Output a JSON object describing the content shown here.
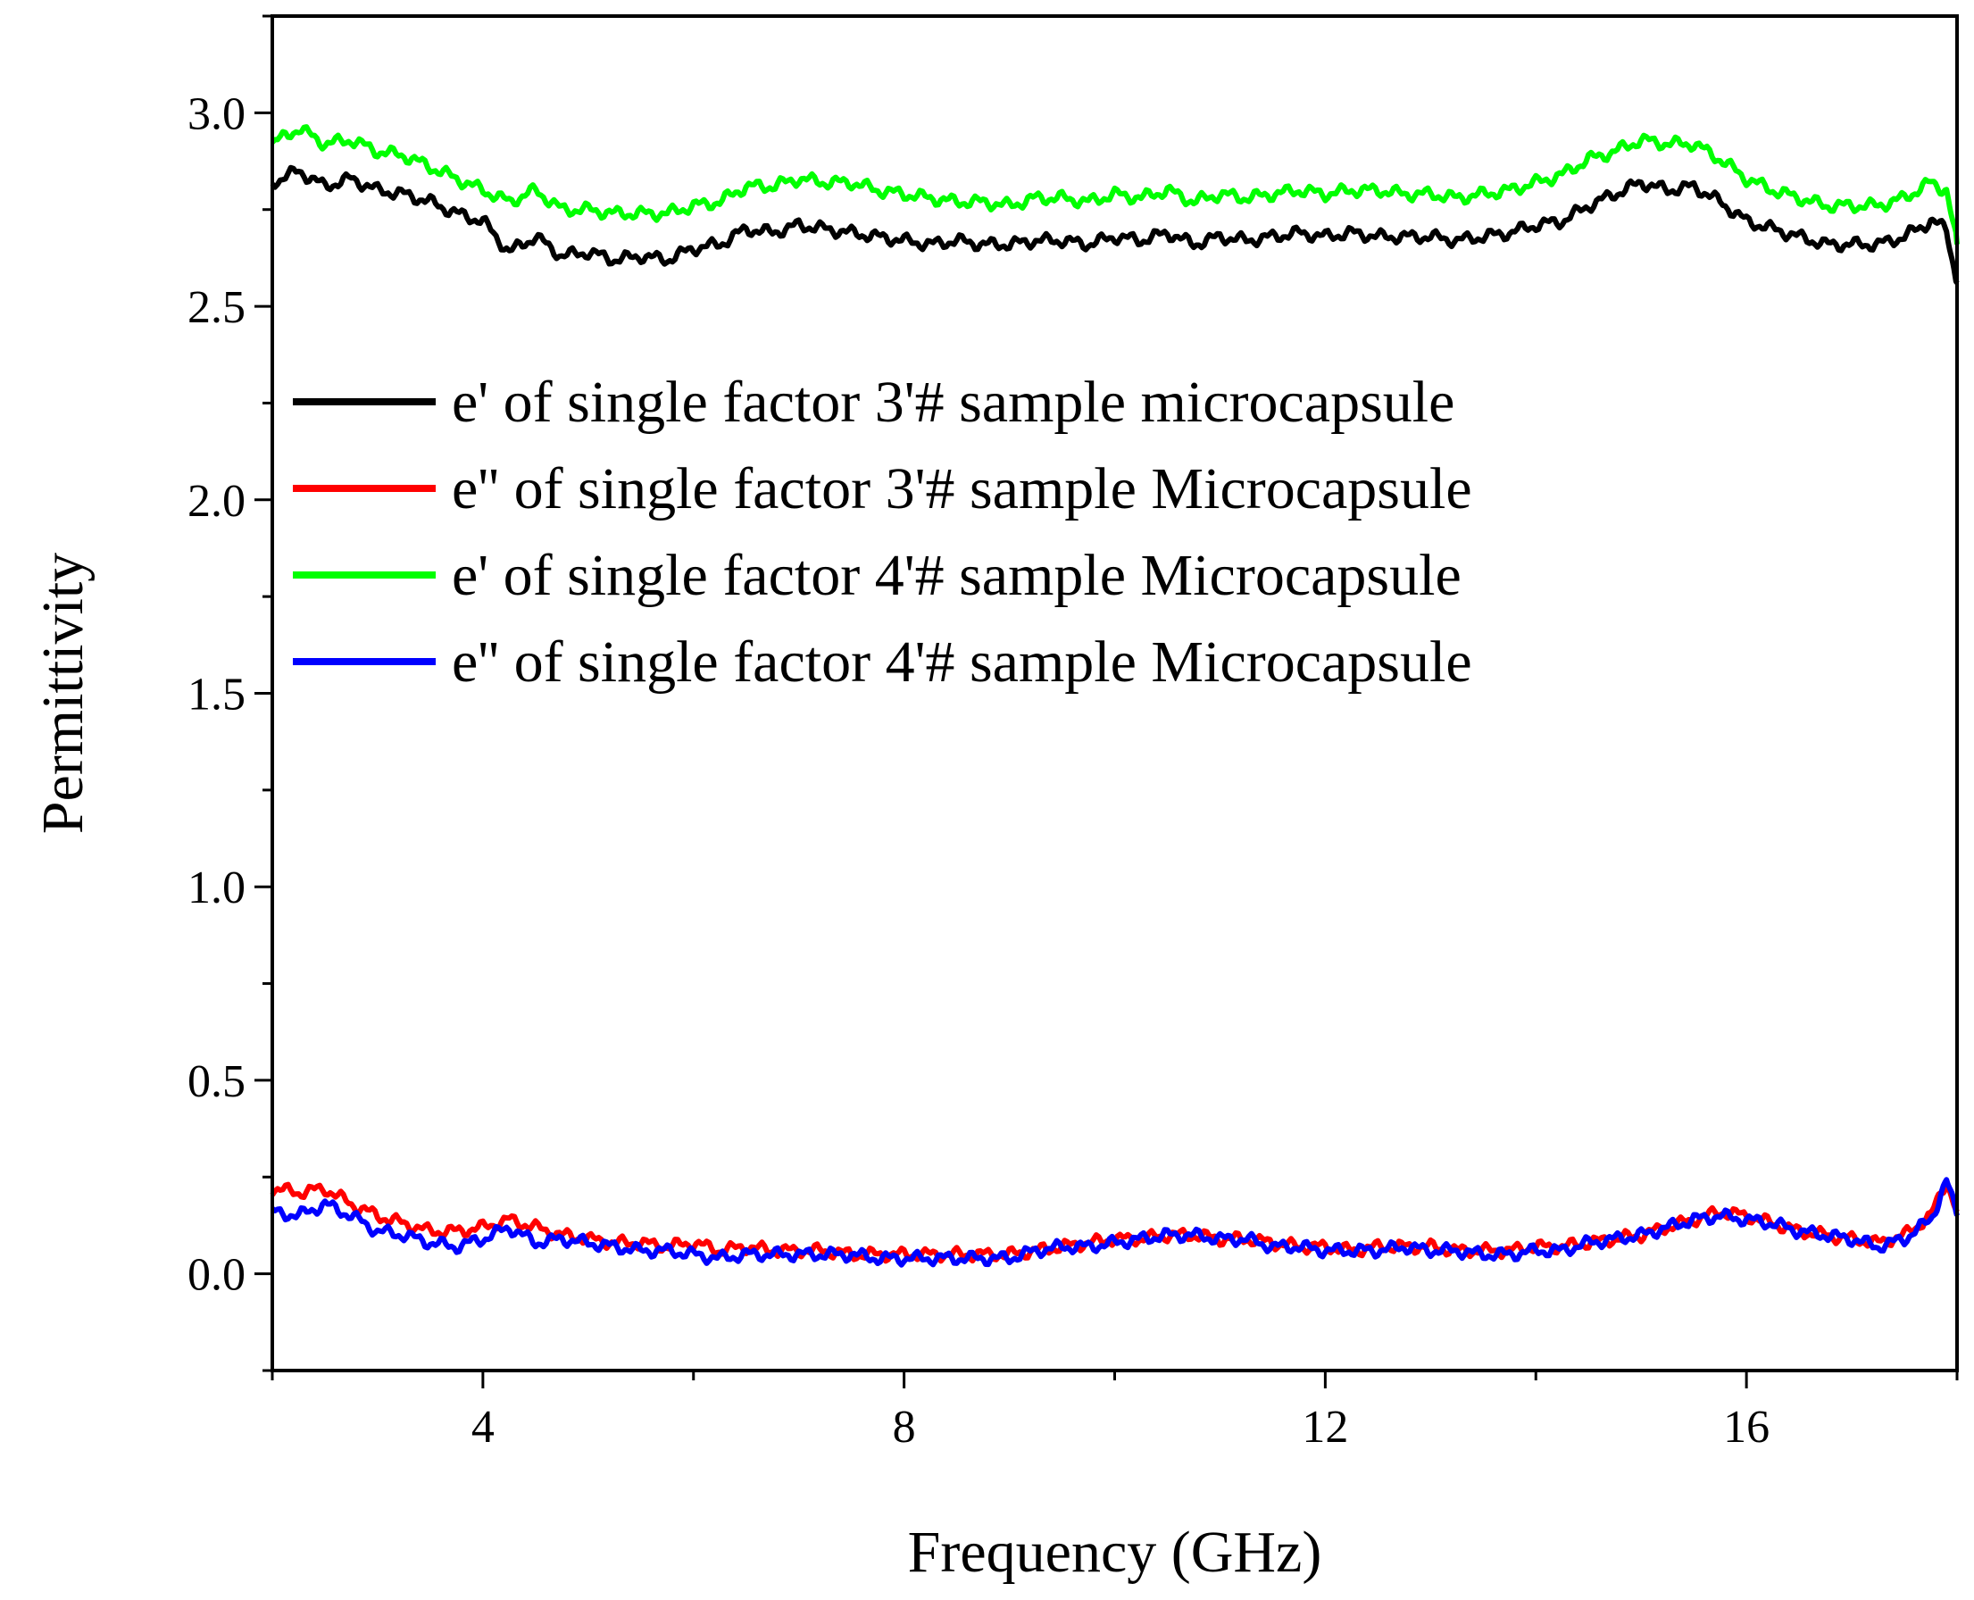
{
  "chart_data": {
    "type": "line",
    "title": "",
    "xlabel": "Frequency (GHz)",
    "ylabel": "Permittivity",
    "xlim": [
      2,
      18
    ],
    "ylim": [
      -0.25,
      3.25
    ],
    "x_ticks": [
      4,
      8,
      12,
      16
    ],
    "x_tick_labels": [
      "4",
      "8",
      "12",
      "16"
    ],
    "y_ticks": [
      0.0,
      0.5,
      1.0,
      1.5,
      2.0,
      2.5,
      3.0
    ],
    "y_tick_labels": [
      "0.0",
      "0.5",
      "1.0",
      "1.5",
      "2.0",
      "2.5",
      "3.0"
    ],
    "grid": false,
    "legend_position": "upper-left",
    "x": [
      2,
      2.25,
      2.5,
      2.75,
      3,
      3.25,
      3.5,
      3.75,
      4,
      4.25,
      4.5,
      4.75,
      5,
      5.25,
      5.5,
      5.75,
      6,
      6.25,
      6.5,
      6.75,
      7,
      7.25,
      7.5,
      7.75,
      8,
      8.25,
      8.5,
      8.75,
      9,
      9.25,
      9.5,
      9.75,
      10,
      10.25,
      10.5,
      10.75,
      11,
      11.25,
      11.5,
      11.75,
      12,
      12.25,
      12.5,
      12.75,
      13,
      13.25,
      13.5,
      13.75,
      14,
      14.25,
      14.5,
      14.75,
      15,
      15.25,
      15.5,
      15.75,
      16,
      16.25,
      16.5,
      16.75,
      17,
      17.25,
      17.5,
      17.75,
      17.9,
      18
    ],
    "series": [
      {
        "name": "e' of single factor 3'# sample microcapsule",
        "color": "#000000",
        "values": [
          2.82,
          2.85,
          2.81,
          2.83,
          2.8,
          2.79,
          2.77,
          2.74,
          2.72,
          2.64,
          2.68,
          2.63,
          2.64,
          2.62,
          2.63,
          2.62,
          2.65,
          2.66,
          2.7,
          2.69,
          2.71,
          2.7,
          2.69,
          2.68,
          2.67,
          2.66,
          2.67,
          2.66,
          2.66,
          2.67,
          2.67,
          2.66,
          2.68,
          2.67,
          2.69,
          2.66,
          2.68,
          2.67,
          2.68,
          2.69,
          2.68,
          2.69,
          2.68,
          2.68,
          2.68,
          2.67,
          2.68,
          2.69,
          2.71,
          2.72,
          2.76,
          2.79,
          2.82,
          2.8,
          2.81,
          2.77,
          2.72,
          2.7,
          2.68,
          2.66,
          2.66,
          2.66,
          2.68,
          2.72,
          2.7,
          2.56
        ]
      },
      {
        "name": "e'' of single factor 3'# sample Microcapsule",
        "color": "#ff0000",
        "values": [
          0.22,
          0.21,
          0.22,
          0.18,
          0.15,
          0.13,
          0.11,
          0.11,
          0.12,
          0.14,
          0.12,
          0.1,
          0.09,
          0.08,
          0.08,
          0.07,
          0.08,
          0.06,
          0.07,
          0.06,
          0.06,
          0.06,
          0.05,
          0.05,
          0.05,
          0.05,
          0.05,
          0.05,
          0.05,
          0.06,
          0.07,
          0.08,
          0.09,
          0.09,
          0.1,
          0.1,
          0.09,
          0.09,
          0.08,
          0.07,
          0.07,
          0.06,
          0.07,
          0.07,
          0.07,
          0.06,
          0.06,
          0.06,
          0.07,
          0.07,
          0.08,
          0.09,
          0.1,
          0.12,
          0.14,
          0.16,
          0.15,
          0.13,
          0.11,
          0.1,
          0.09,
          0.08,
          0.1,
          0.15,
          0.24,
          0.16
        ]
      },
      {
        "name": "e' of single factor 4'# sample Microcapsule",
        "color": "#00ff00",
        "values": [
          2.92,
          2.96,
          2.92,
          2.93,
          2.9,
          2.89,
          2.86,
          2.83,
          2.8,
          2.77,
          2.8,
          2.75,
          2.75,
          2.74,
          2.74,
          2.74,
          2.76,
          2.77,
          2.81,
          2.81,
          2.83,
          2.82,
          2.82,
          2.8,
          2.79,
          2.78,
          2.77,
          2.77,
          2.76,
          2.78,
          2.78,
          2.77,
          2.79,
          2.78,
          2.8,
          2.77,
          2.79,
          2.78,
          2.79,
          2.8,
          2.79,
          2.8,
          2.8,
          2.79,
          2.79,
          2.78,
          2.79,
          2.8,
          2.82,
          2.84,
          2.88,
          2.9,
          2.93,
          2.92,
          2.92,
          2.88,
          2.83,
          2.8,
          2.78,
          2.76,
          2.76,
          2.76,
          2.78,
          2.82,
          2.8,
          2.66
        ]
      },
      {
        "name": "e'' of single factor 4'# sample Microcapsule",
        "color": "#0000ff",
        "values": [
          0.16,
          0.15,
          0.18,
          0.15,
          0.11,
          0.1,
          0.08,
          0.07,
          0.09,
          0.12,
          0.08,
          0.09,
          0.08,
          0.07,
          0.06,
          0.06,
          0.05,
          0.04,
          0.05,
          0.05,
          0.05,
          0.05,
          0.05,
          0.04,
          0.04,
          0.04,
          0.04,
          0.04,
          0.04,
          0.06,
          0.07,
          0.07,
          0.08,
          0.09,
          0.1,
          0.1,
          0.09,
          0.09,
          0.07,
          0.07,
          0.06,
          0.06,
          0.06,
          0.07,
          0.06,
          0.06,
          0.05,
          0.05,
          0.06,
          0.06,
          0.08,
          0.09,
          0.1,
          0.12,
          0.14,
          0.15,
          0.14,
          0.13,
          0.11,
          0.1,
          0.09,
          0.07,
          0.09,
          0.14,
          0.24,
          0.15
        ]
      }
    ]
  }
}
